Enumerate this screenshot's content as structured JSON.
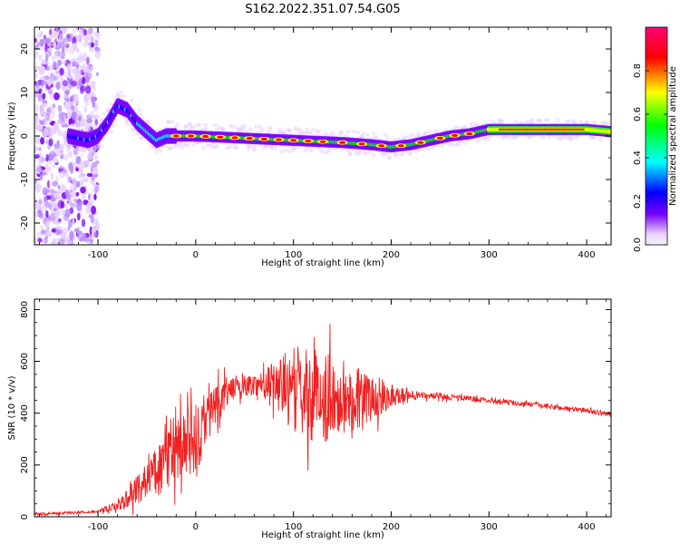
{
  "title": "S162.2022.351.07.54.G05",
  "colors": {
    "snr_line": "#f02020",
    "colormap": [
      "#f4f4f8",
      "#e8d0ff",
      "#7a00ff",
      "#0000ff",
      "#00ffff",
      "#00ff00",
      "#ffff00",
      "#ff0000",
      "#ff0077"
    ]
  },
  "chart_data": [
    {
      "type": "heatmap",
      "xlabel": "Height of straight line (km)",
      "ylabel": "Frequency (Hz)",
      "xlim": [
        -165,
        425
      ],
      "ylim": [
        -25,
        25
      ],
      "xticks": [
        -100,
        0,
        100,
        200,
        300,
        400
      ],
      "yticks": [
        -20,
        -10,
        0,
        10,
        20
      ],
      "ridge": {
        "x": [
          -165,
          -130,
          -110,
          -100,
          -90,
          -80,
          -70,
          -60,
          -50,
          -40,
          -30,
          -20,
          0,
          50,
          100,
          150,
          180,
          200,
          220,
          240,
          260,
          280,
          300,
          350,
          400,
          425
        ],
        "y": [
          0,
          0,
          -1,
          0,
          3,
          7,
          6,
          3,
          1,
          -1,
          0,
          0,
          0,
          -0.5,
          -1,
          -1.5,
          -2,
          -2.5,
          -2,
          -1,
          0,
          0.5,
          1.5,
          1.5,
          1.5,
          1
        ]
      },
      "colorbar": {
        "label": "Normalized spectral amplitude",
        "range": [
          0,
          1
        ],
        "ticks": [
          0.0,
          0.2,
          0.4,
          0.6,
          0.8
        ],
        "tick_labels": [
          "0.0",
          "0.2",
          "0.4",
          "0.6",
          "0.8"
        ]
      }
    },
    {
      "type": "line",
      "xlabel": "Height of straight line (km)",
      "ylabel": "SNR (10 * v/v)",
      "xlim": [
        -165,
        425
      ],
      "ylim": [
        0,
        840
      ],
      "xticks": [
        -100,
        0,
        100,
        200,
        300,
        400
      ],
      "yticks": [
        0,
        200,
        400,
        600,
        800
      ],
      "series": [
        {
          "x": [
            -165,
            -100,
            -80,
            -60,
            -40,
            -20,
            0,
            20,
            40,
            60,
            80,
            100,
            120,
            140,
            160,
            180,
            200,
            220,
            250,
            300,
            350,
            400,
            425
          ],
          "y": [
            10,
            20,
            40,
            110,
            180,
            250,
            290,
            440,
            500,
            510,
            520,
            490,
            470,
            460,
            460,
            455,
            470,
            470,
            465,
            450,
            430,
            410,
            395
          ],
          "spread": [
            5,
            5,
            20,
            60,
            90,
            130,
            150,
            80,
            40,
            40,
            80,
            170,
            180,
            170,
            130,
            90,
            50,
            15,
            12,
            10,
            10,
            10,
            10
          ]
        }
      ]
    }
  ]
}
